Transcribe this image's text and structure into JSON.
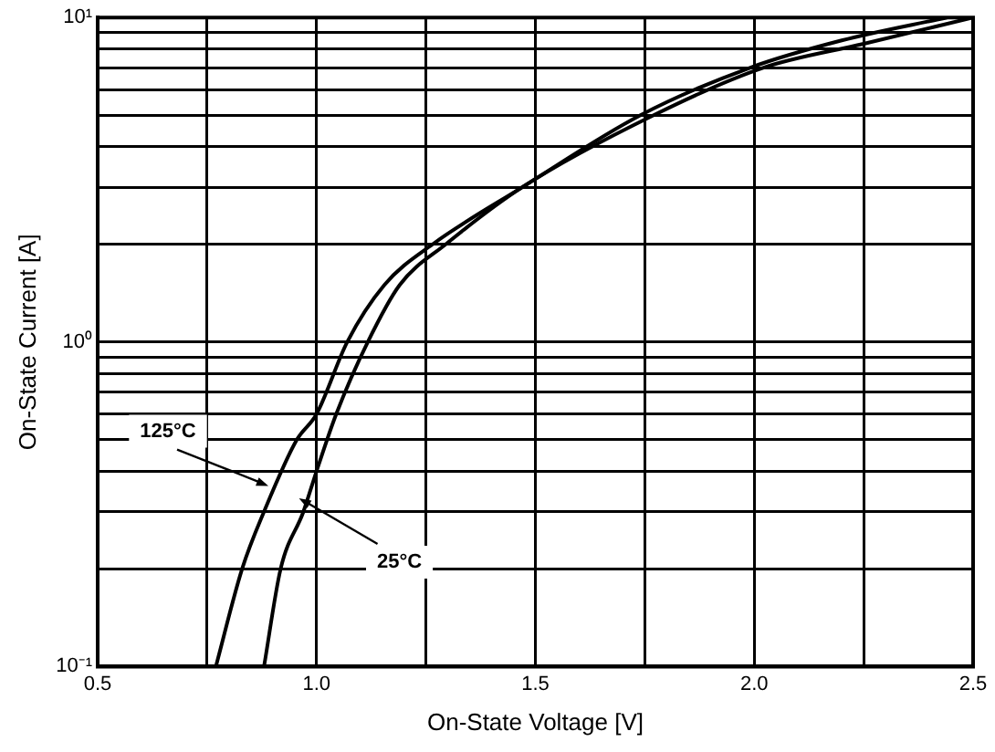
{
  "chart_data": {
    "type": "line",
    "xlabel": "On-State Voltage [V]",
    "ylabel": "On-State Current [A]",
    "log": "y",
    "grid": true,
    "legend": false,
    "marker": "none",
    "line_style": "solid",
    "xlim": [
      0.5,
      2.5
    ],
    "ylim": [
      0.1,
      10
    ],
    "xticks": [
      {
        "value": 0.5,
        "label": "0.5"
      },
      {
        "value": 0.75,
        "label": null
      },
      {
        "value": 1,
        "label": "1.0"
      },
      {
        "value": 1.25,
        "label": null
      },
      {
        "value": 1.5,
        "label": "1.5"
      },
      {
        "value": 1.75,
        "label": null
      },
      {
        "value": 2,
        "label": "2.0"
      },
      {
        "value": 2.25,
        "label": null
      },
      {
        "value": 2.5,
        "label": "2.5"
      }
    ],
    "yticks": [
      {
        "value": 0.1,
        "label": "10⁻¹"
      },
      {
        "value": 0.2,
        "label": null
      },
      {
        "value": 0.3,
        "label": null
      },
      {
        "value": 0.4,
        "label": null
      },
      {
        "value": 0.5,
        "label": null
      },
      {
        "value": 0.6,
        "label": null
      },
      {
        "value": 0.7,
        "label": null
      },
      {
        "value": 0.8,
        "label": null
      },
      {
        "value": 0.9,
        "label": null
      },
      {
        "value": 1,
        "label": "10⁰"
      },
      {
        "value": 2,
        "label": null
      },
      {
        "value": 3,
        "label": null
      },
      {
        "value": 4,
        "label": null
      },
      {
        "value": 5,
        "label": null
      },
      {
        "value": 6,
        "label": null
      },
      {
        "value": 7,
        "label": null
      },
      {
        "value": 8,
        "label": null
      },
      {
        "value": 9,
        "label": null
      },
      {
        "value": 10,
        "label": "10¹"
      }
    ],
    "series": [
      {
        "color": "#000000",
        "x": [
          0.77,
          0.83,
          0.88,
          0.955,
          1.0,
          1.07,
          1.155,
          1.265,
          1.47,
          1.74,
          1.99,
          2.2,
          2.44
        ],
        "values": [
          0.1,
          0.2,
          0.3,
          0.5,
          0.6,
          1.0,
          1.5,
          2,
          3,
          5,
          7,
          8.5,
          10
        ]
      },
      {
        "color": "#000000",
        "x": [
          0.88,
          0.918,
          0.97,
          1.0,
          1.045,
          1.117,
          1.19,
          1.295,
          1.47,
          1.77,
          2.02,
          2.25,
          2.5
        ],
        "values": [
          0.1,
          0.2,
          0.3,
          0.4,
          0.6,
          1.0,
          1.5,
          2,
          3,
          5,
          7,
          8.3,
          10
        ]
      }
    ],
    "annotations": [
      {
        "text": "125°C",
        "x": 0.89,
        "y": 0.36
      },
      {
        "text": "25°C",
        "x": 0.96,
        "y": 0.33
      }
    ]
  }
}
